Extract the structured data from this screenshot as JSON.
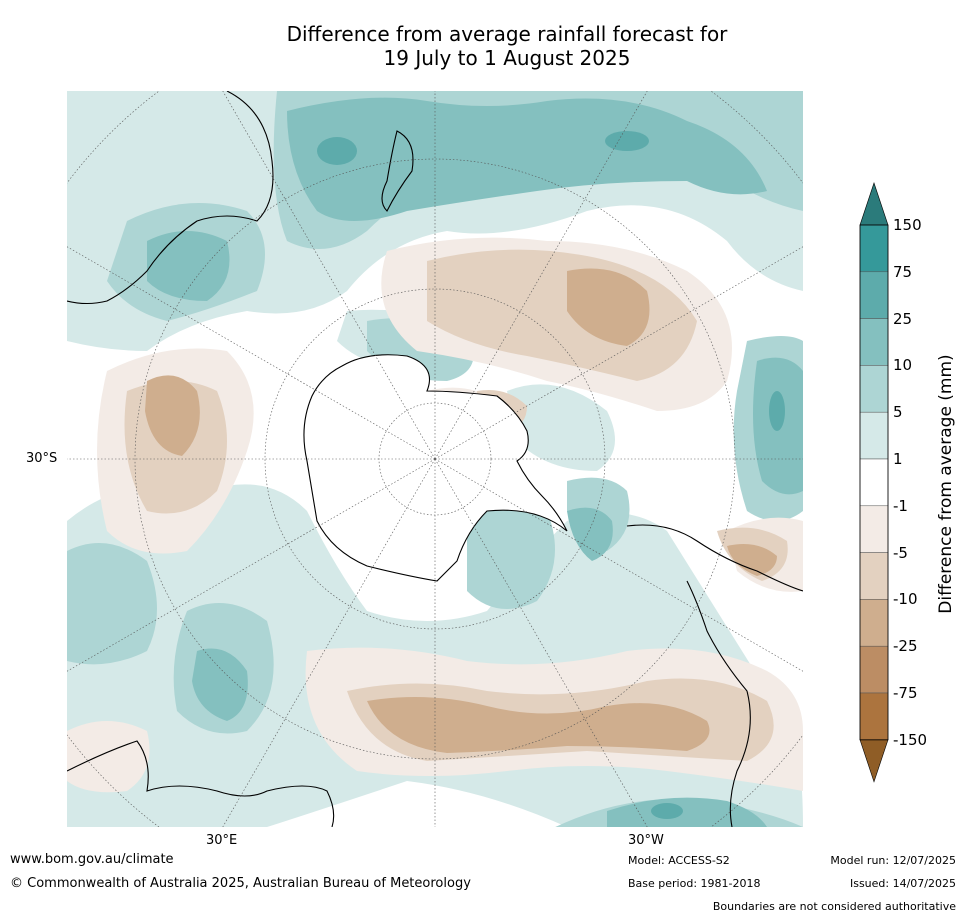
{
  "title": {
    "line1": "Difference from average rainfall forecast for",
    "line2": "19 July to 1 August 2025"
  },
  "map": {
    "projection": "south-polar-stereographic",
    "lat_label": "30°S",
    "lon_labels": [
      "30°E",
      "30°W"
    ]
  },
  "colorbar": {
    "title": "Difference from average (mm)",
    "levels": [
      "150",
      "75",
      "25",
      "10",
      "5",
      "1",
      "-1",
      "-5",
      "-10",
      "-25",
      "-75",
      "-150"
    ],
    "colors": [
      "#2b7b7b",
      "#35999a",
      "#5dabab",
      "#84c0bf",
      "#add5d4",
      "#d5e9e8",
      "#ffffff",
      "#f3ebe6",
      "#e3d1c0",
      "#cfae8e",
      "#bc8d64",
      "#ac743e",
      "#8f5d26"
    ],
    "extend": "both"
  },
  "footer": {
    "website": "www.bom.gov.au/climate",
    "copyright": "© Commonwealth of Australia 2025, Australian Bureau of Meteorology",
    "model": "Model: ACCESS-S2",
    "base_period": "Base period: 1981-2018",
    "model_run": "Model run: 12/07/2025",
    "issued": "Issued: 14/07/2025",
    "disclaimer": "Boundaries are not considered authoritative"
  }
}
